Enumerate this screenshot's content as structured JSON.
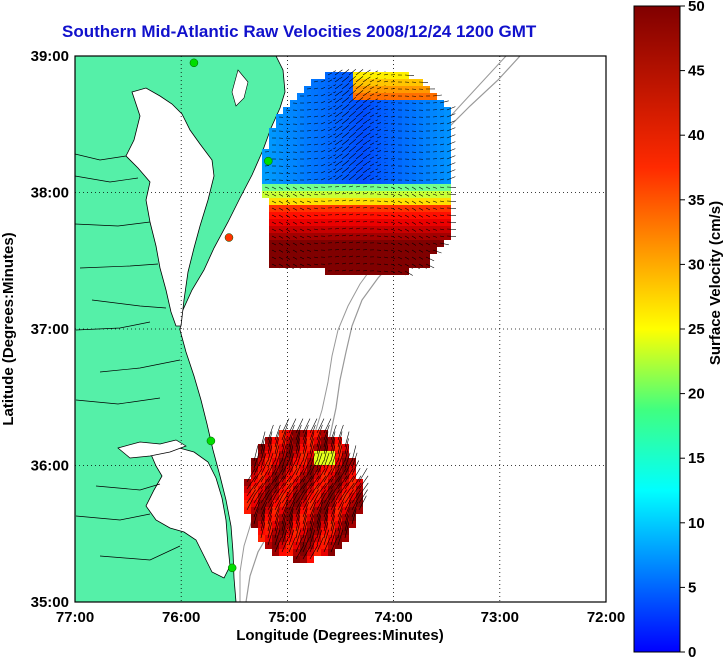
{
  "title": "Southern Mid-Atlantic Raw Velocities 2008/12/24 1200 GMT",
  "map": {
    "x_label": "Longitude (Degrees:Minutes)",
    "y_label": "Latitude (Degrees:Minutes)",
    "x_ticks": [
      "77:00",
      "76:00",
      "75:00",
      "74:00",
      "73:00",
      "72:00"
    ],
    "y_ticks": [
      "39:00",
      "38:00",
      "37:00",
      "36:00",
      "35:00"
    ],
    "lon_range": [
      -77,
      -72
    ],
    "lat_range": [
      35,
      39
    ],
    "land_color": "#55f0a8",
    "grid": "dotted"
  },
  "colorbar": {
    "label": "Surface Velocity (cm/s)",
    "ticks": [
      "0",
      "5",
      "10",
      "15",
      "20",
      "25",
      "30",
      "35",
      "40",
      "45",
      "50"
    ],
    "range": [
      0,
      50
    ],
    "colormap": "jet"
  },
  "stations": [
    {
      "lon": -75.88,
      "lat": 38.95,
      "color": "#00dd00"
    },
    {
      "lon": -75.18,
      "lat": 38.23,
      "color": "#00dd00"
    },
    {
      "lon": -75.55,
      "lat": 37.67,
      "color": "#ff3300"
    },
    {
      "lon": -75.72,
      "lat": 36.18,
      "color": "#00dd00"
    },
    {
      "lon": -75.52,
      "lat": 35.25,
      "color": "#00dd00"
    }
  ]
}
